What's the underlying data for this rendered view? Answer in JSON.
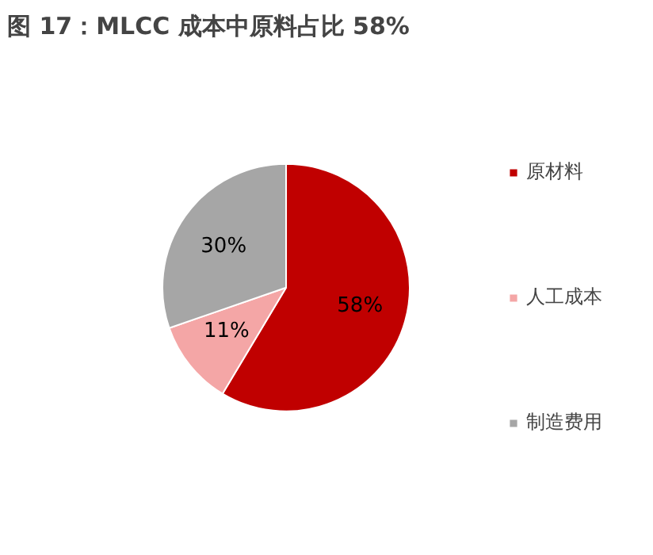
{
  "chart_data": {
    "type": "pie",
    "title": "图 17：MLCC 成本中原料占比 58%",
    "categories": [
      "原材料",
      "人工成本",
      "制造费用"
    ],
    "values": [
      58,
      11,
      30
    ],
    "colors": [
      "#c00000",
      "#f4a6a6",
      "#a6a6a6"
    ],
    "value_labels": [
      "58%",
      "11%",
      "30%"
    ],
    "legend": "right"
  }
}
